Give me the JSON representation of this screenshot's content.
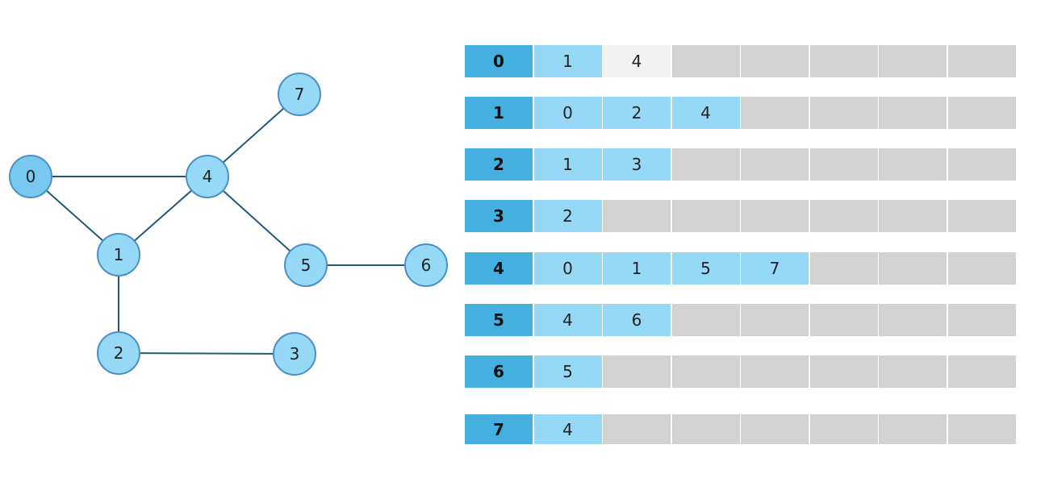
{
  "graph": {
    "nodes": [
      {
        "id": "0",
        "label": "0",
        "highlight": true
      },
      {
        "id": "1",
        "label": "1"
      },
      {
        "id": "2",
        "label": "2"
      },
      {
        "id": "3",
        "label": "3"
      },
      {
        "id": "4",
        "label": "4"
      },
      {
        "id": "5",
        "label": "5"
      },
      {
        "id": "6",
        "label": "6"
      },
      {
        "id": "7",
        "label": "7"
      }
    ],
    "edges": [
      [
        "0",
        "4"
      ],
      [
        "0",
        "1"
      ],
      [
        "1",
        "4"
      ],
      [
        "1",
        "2"
      ],
      [
        "2",
        "3"
      ],
      [
        "4",
        "7"
      ],
      [
        "4",
        "5"
      ],
      [
        "5",
        "6"
      ]
    ]
  },
  "adjacency": [
    {
      "vertex": "0",
      "neighbors": [
        "1",
        "4"
      ],
      "highlighted_index": 1
    },
    {
      "vertex": "1",
      "neighbors": [
        "0",
        "2",
        "4"
      ]
    },
    {
      "vertex": "2",
      "neighbors": [
        "1",
        "3"
      ]
    },
    {
      "vertex": "3",
      "neighbors": [
        "2"
      ]
    },
    {
      "vertex": "4",
      "neighbors": [
        "0",
        "1",
        "5",
        "7"
      ]
    },
    {
      "vertex": "5",
      "neighbors": [
        "4",
        "6"
      ]
    },
    {
      "vertex": "6",
      "neighbors": [
        "5"
      ]
    },
    {
      "vertex": "7",
      "neighbors": [
        "4"
      ]
    }
  ],
  "colors": {
    "header_cell": "#45b0e0",
    "neighbor_cell": "#96d9f6",
    "highlighted_cell": "#f2f2f2",
    "empty_cell": "#d2d2d2",
    "node_fill": "#96d9f6",
    "node_fill_highlight": "#79c8ef",
    "node_stroke": "#4a90c8",
    "edge": "#1f5a78"
  }
}
